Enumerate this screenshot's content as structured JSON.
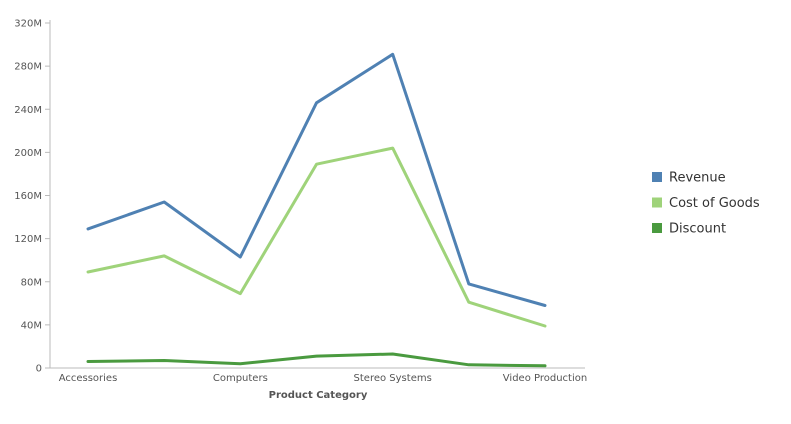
{
  "chart_data": {
    "type": "line",
    "title": "",
    "xlabel": "Product Category",
    "ylabel": "",
    "categories": [
      "Accessories",
      "",
      "Computers",
      "",
      "Stereo Systems",
      "",
      "Video Production"
    ],
    "x_tick_labels": [
      "Accessories",
      "Computers",
      "Stereo Systems",
      "Video Production"
    ],
    "ylim": [
      0,
      320000000
    ],
    "y_ticks": [
      0,
      40000000,
      80000000,
      120000000,
      160000000,
      200000000,
      240000000,
      280000000,
      320000000
    ],
    "y_tick_labels": [
      "0",
      "40M",
      "80M",
      "120M",
      "160M",
      "200M",
      "240M",
      "280M",
      "320M"
    ],
    "grid": false,
    "legend_position": "right",
    "series": [
      {
        "name": "Revenue",
        "color": "#4f81b3",
        "values": [
          129000000,
          154000000,
          103000000,
          246000000,
          291000000,
          78000000,
          58000000
        ]
      },
      {
        "name": "Cost of Goods",
        "color": "#9fd37a",
        "values": [
          89000000,
          104000000,
          69000000,
          189000000,
          204000000,
          61000000,
          39000000
        ]
      },
      {
        "name": "Discount",
        "color": "#4a9a3f",
        "values": [
          6000000,
          7000000,
          4000000,
          11000000,
          13000000,
          3000000,
          2000000
        ]
      }
    ]
  }
}
